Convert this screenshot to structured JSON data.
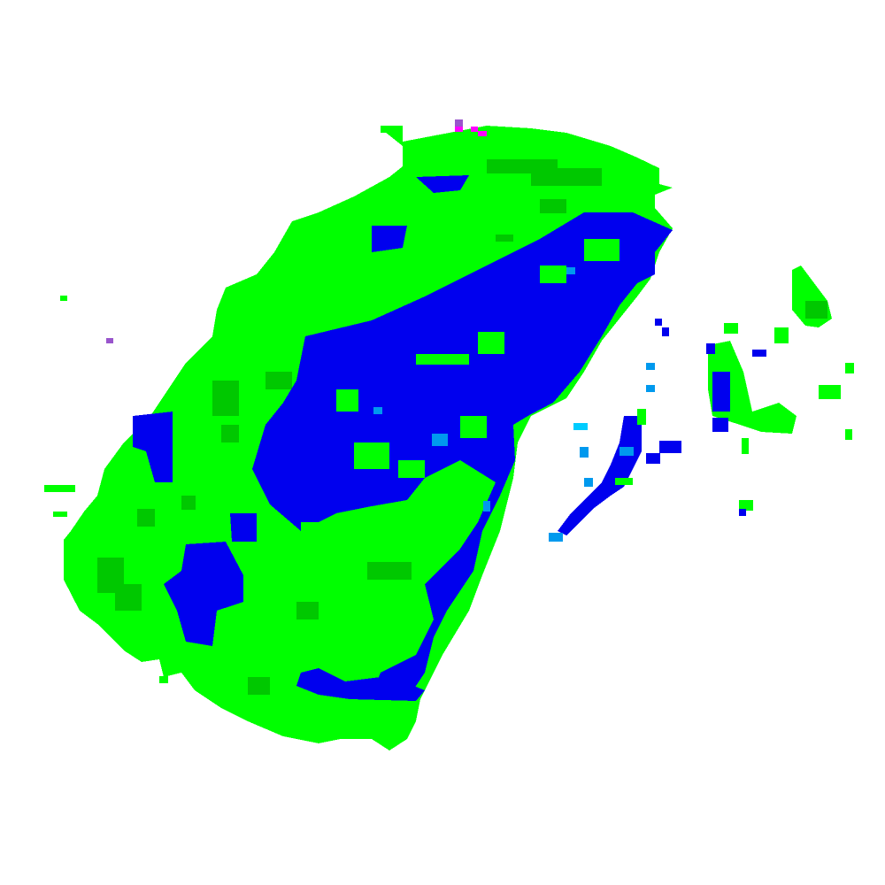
{
  "map": {
    "type": "radar-reflectivity-tile",
    "colors": {
      "background": "#ffffff",
      "light_echo": "#00ff00",
      "moderate_echo": "#00c800",
      "heavy_echo": "#0000ee",
      "cyan_echo": "#0099ee",
      "light_blue_echo": "#00ccff",
      "magenta_echo": "#ff00ff",
      "purple_echo": "#9955cc"
    }
  }
}
